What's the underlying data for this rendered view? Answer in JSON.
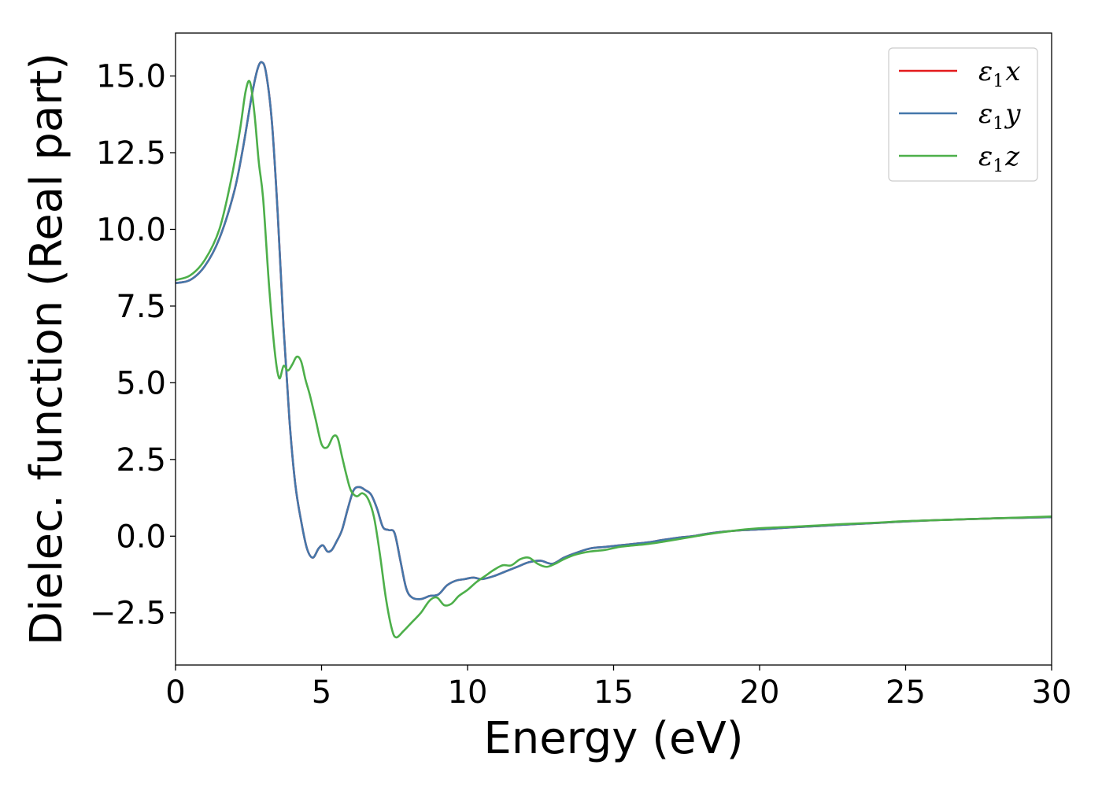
{
  "chart_data": {
    "type": "line",
    "title": "",
    "xlabel": "Energy (eV)",
    "ylabel": "Dielec. function (Real part)",
    "xlim": [
      0,
      30
    ],
    "ylim": [
      -4.2,
      16.4
    ],
    "xticks": [
      0,
      5,
      10,
      15,
      20,
      25,
      30
    ],
    "xtick_labels": [
      "0",
      "5",
      "10",
      "15",
      "20",
      "25",
      "30"
    ],
    "yticks": [
      -2.5,
      0.0,
      2.5,
      5.0,
      7.5,
      10.0,
      12.5,
      15.0
    ],
    "ytick_labels": [
      "−2.5",
      "0.0",
      "2.5",
      "5.0",
      "7.5",
      "10.0",
      "12.5",
      "15.0"
    ],
    "grid": false,
    "legend_position": "top-right",
    "series": [
      {
        "name": "ε₁x",
        "legend_base": "ε",
        "legend_sub": "1",
        "legend_var": "x",
        "color": "#e41a1c",
        "x": [
          0,
          0.5,
          1.0,
          1.5,
          2.0,
          2.3,
          2.6,
          2.8,
          2.95,
          3.1,
          3.3,
          3.5,
          3.7,
          3.9,
          4.1,
          4.3,
          4.5,
          4.7,
          4.9,
          5.05,
          5.2,
          5.35,
          5.5,
          5.7,
          5.9,
          6.1,
          6.3,
          6.5,
          6.7,
          6.9,
          7.1,
          7.3,
          7.5,
          7.7,
          7.9,
          8.1,
          8.4,
          8.7,
          9.0,
          9.3,
          9.6,
          9.9,
          10.2,
          10.5,
          10.9,
          11.3,
          11.7,
          12.1,
          12.5,
          12.9,
          13.3,
          13.7,
          14.2,
          14.7,
          15.2,
          15.7,
          16.2,
          16.7,
          17.2,
          17.7,
          18.2,
          18.8,
          19.5,
          20.2,
          21.0,
          22.0,
          23.0,
          24.0,
          25.0,
          26.0,
          27.0,
          28.0,
          29.0,
          30.0
        ],
        "values": [
          8.25,
          8.35,
          8.8,
          9.7,
          11.2,
          12.6,
          14.3,
          15.2,
          15.45,
          15.1,
          13.5,
          10.5,
          6.8,
          3.8,
          1.7,
          0.5,
          -0.4,
          -0.7,
          -0.4,
          -0.3,
          -0.5,
          -0.45,
          -0.2,
          0.2,
          0.9,
          1.5,
          1.6,
          1.5,
          1.35,
          0.9,
          0.3,
          0.2,
          0.1,
          -0.8,
          -1.7,
          -2.0,
          -2.05,
          -1.95,
          -1.9,
          -1.6,
          -1.45,
          -1.4,
          -1.35,
          -1.4,
          -1.3,
          -1.15,
          -1.0,
          -0.85,
          -0.8,
          -0.9,
          -0.7,
          -0.55,
          -0.4,
          -0.35,
          -0.3,
          -0.25,
          -0.2,
          -0.12,
          -0.05,
          0.0,
          0.08,
          0.15,
          0.2,
          0.23,
          0.28,
          0.33,
          0.38,
          0.43,
          0.48,
          0.52,
          0.55,
          0.58,
          0.6,
          0.62
        ]
      },
      {
        "name": "ε₁y",
        "legend_base": "ε",
        "legend_sub": "1",
        "legend_var": "y",
        "color": "#4477aa",
        "x": [
          0,
          0.5,
          1.0,
          1.5,
          2.0,
          2.3,
          2.6,
          2.8,
          2.95,
          3.1,
          3.3,
          3.5,
          3.7,
          3.9,
          4.1,
          4.3,
          4.5,
          4.7,
          4.9,
          5.05,
          5.2,
          5.35,
          5.5,
          5.7,
          5.9,
          6.1,
          6.3,
          6.5,
          6.7,
          6.9,
          7.1,
          7.3,
          7.5,
          7.7,
          7.9,
          8.1,
          8.4,
          8.7,
          9.0,
          9.3,
          9.6,
          9.9,
          10.2,
          10.5,
          10.9,
          11.3,
          11.7,
          12.1,
          12.5,
          12.9,
          13.3,
          13.7,
          14.2,
          14.7,
          15.2,
          15.7,
          16.2,
          16.7,
          17.2,
          17.7,
          18.2,
          18.8,
          19.5,
          20.2,
          21.0,
          22.0,
          23.0,
          24.0,
          25.0,
          26.0,
          27.0,
          28.0,
          29.0,
          30.0
        ],
        "values": [
          8.25,
          8.35,
          8.8,
          9.7,
          11.2,
          12.6,
          14.3,
          15.2,
          15.45,
          15.1,
          13.5,
          10.5,
          6.8,
          3.8,
          1.7,
          0.5,
          -0.4,
          -0.7,
          -0.4,
          -0.3,
          -0.5,
          -0.45,
          -0.2,
          0.2,
          0.9,
          1.5,
          1.6,
          1.5,
          1.35,
          0.9,
          0.3,
          0.2,
          0.1,
          -0.8,
          -1.7,
          -2.0,
          -2.05,
          -1.95,
          -1.9,
          -1.6,
          -1.45,
          -1.4,
          -1.35,
          -1.4,
          -1.3,
          -1.15,
          -1.0,
          -0.85,
          -0.8,
          -0.9,
          -0.7,
          -0.55,
          -0.4,
          -0.35,
          -0.3,
          -0.25,
          -0.2,
          -0.12,
          -0.05,
          0.0,
          0.08,
          0.15,
          0.2,
          0.23,
          0.28,
          0.33,
          0.38,
          0.43,
          0.48,
          0.52,
          0.55,
          0.58,
          0.6,
          0.62
        ]
      },
      {
        "name": "ε₁z",
        "legend_base": "ε",
        "legend_sub": "1",
        "legend_var": "z",
        "color": "#4daf4a",
        "x": [
          0,
          0.5,
          1.0,
          1.5,
          1.9,
          2.2,
          2.4,
          2.55,
          2.7,
          2.85,
          3.0,
          3.2,
          3.4,
          3.55,
          3.7,
          3.85,
          4.0,
          4.15,
          4.3,
          4.45,
          4.6,
          4.8,
          5.0,
          5.2,
          5.4,
          5.55,
          5.7,
          5.85,
          6.0,
          6.2,
          6.4,
          6.6,
          6.8,
          7.0,
          7.2,
          7.4,
          7.55,
          7.8,
          8.1,
          8.4,
          8.7,
          8.95,
          9.2,
          9.45,
          9.7,
          10.0,
          10.3,
          10.6,
          10.9,
          11.2,
          11.5,
          11.8,
          12.1,
          12.4,
          12.7,
          13.0,
          13.3,
          13.7,
          14.2,
          14.7,
          15.2,
          15.7,
          16.2,
          16.7,
          17.2,
          17.7,
          18.2,
          18.8,
          19.5,
          20.2,
          21.0,
          22.0,
          23.0,
          24.0,
          25.0,
          26.0,
          27.0,
          28.0,
          29.0,
          30.0
        ],
        "values": [
          8.35,
          8.5,
          9.0,
          10.0,
          11.6,
          13.2,
          14.5,
          14.8,
          13.8,
          12.2,
          11.0,
          8.2,
          6.0,
          5.15,
          5.55,
          5.4,
          5.6,
          5.85,
          5.7,
          5.1,
          4.6,
          3.8,
          3.0,
          2.9,
          3.25,
          3.2,
          2.6,
          2.0,
          1.5,
          1.3,
          1.4,
          1.2,
          0.6,
          -0.6,
          -2.0,
          -3.0,
          -3.3,
          -3.1,
          -2.8,
          -2.5,
          -2.1,
          -2.0,
          -2.25,
          -2.2,
          -1.95,
          -1.75,
          -1.5,
          -1.3,
          -1.1,
          -0.95,
          -0.95,
          -0.75,
          -0.7,
          -0.9,
          -1.0,
          -0.9,
          -0.75,
          -0.6,
          -0.5,
          -0.45,
          -0.35,
          -0.3,
          -0.25,
          -0.18,
          -0.1,
          -0.02,
          0.06,
          0.14,
          0.22,
          0.27,
          0.3,
          0.35,
          0.4,
          0.44,
          0.49,
          0.52,
          0.55,
          0.58,
          0.61,
          0.64
        ]
      }
    ]
  }
}
